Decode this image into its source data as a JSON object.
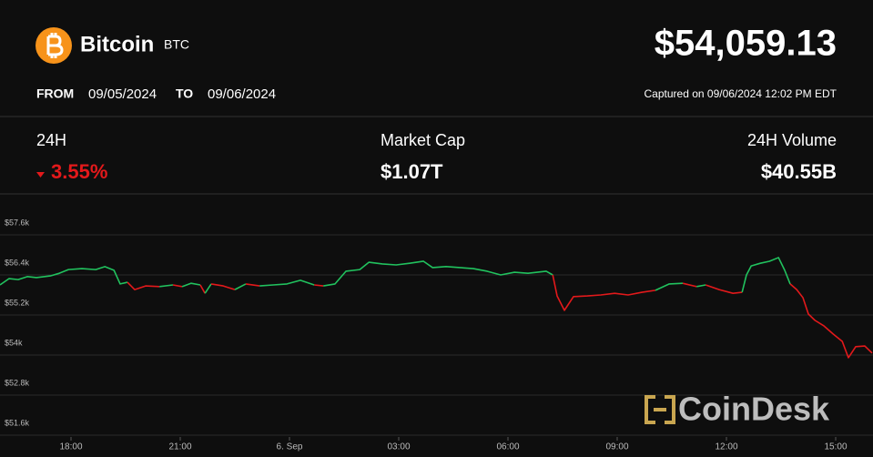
{
  "header": {
    "name": "Bitcoin",
    "symbol": "BTC",
    "price": "$54,059.13",
    "from_label": "FROM",
    "from_date": "09/05/2024",
    "to_label": "TO",
    "to_date": "09/06/2024",
    "captured": "Captured on 09/06/2024 12:02 PM EDT"
  },
  "stats": [
    {
      "label": "24H",
      "value": "3.55%"
    },
    {
      "label": "Market Cap",
      "value": "$1.07T"
    },
    {
      "label": "24H Volume",
      "value": "$40.55B"
    }
  ],
  "watermark": "CoinDesk",
  "chart_data": {
    "type": "line",
    "x": [
      16.05,
      16.3,
      16.55,
      16.8,
      17.05,
      17.43,
      17.68,
      17.93,
      18.3,
      18.68,
      18.93,
      19.18,
      19.35,
      19.55,
      19.75,
      20.05,
      20.43,
      20.8,
      21.05,
      21.3,
      21.55,
      21.68,
      21.85,
      22.18,
      22.5,
      22.8,
      23.18,
      23.55,
      23.93,
      24.3,
      24.68,
      24.93,
      25.25,
      25.55,
      25.93,
      26.18,
      26.55,
      26.93,
      27.3,
      27.68,
      27.93,
      28.3,
      28.68,
      29.05,
      29.43,
      29.8,
      30.18,
      30.55,
      31.05,
      31.23,
      31.35,
      31.55,
      31.8,
      32.18,
      32.55,
      32.93,
      33.3,
      33.68,
      34.05,
      34.43,
      34.8,
      35.18,
      35.43,
      35.8,
      36.18,
      36.43,
      36.55,
      36.68,
      36.93,
      37.18,
      37.43,
      37.6,
      37.75,
      37.93,
      38.1,
      38.25,
      38.43,
      38.68,
      38.93,
      39.18,
      39.35,
      39.55,
      39.8,
      40.0
    ],
    "values": [
      56.1,
      56.29,
      56.26,
      56.35,
      56.32,
      56.37,
      56.45,
      56.56,
      56.59,
      56.56,
      56.65,
      56.54,
      56.13,
      56.18,
      55.96,
      56.07,
      56.05,
      56.1,
      56.05,
      56.15,
      56.1,
      55.85,
      56.13,
      56.07,
      55.96,
      56.13,
      56.07,
      56.1,
      56.13,
      56.24,
      56.1,
      56.07,
      56.13,
      56.51,
      56.56,
      56.78,
      56.73,
      56.7,
      56.75,
      56.81,
      56.62,
      56.65,
      56.62,
      56.59,
      56.51,
      56.4,
      56.48,
      56.45,
      56.51,
      56.4,
      55.77,
      55.34,
      55.75,
      55.77,
      55.8,
      55.85,
      55.8,
      55.88,
      55.94,
      56.13,
      56.15,
      56.05,
      56.1,
      55.96,
      55.85,
      55.88,
      56.4,
      56.67,
      56.75,
      56.81,
      56.92,
      56.54,
      56.13,
      55.96,
      55.72,
      55.23,
      55.04,
      54.87,
      54.63,
      54.41,
      53.92,
      54.25,
      54.27,
      54.06
    ],
    "colors": {
      "up": "#21c25e",
      "down": "#e3191b"
    },
    "xlim": [
      16.05,
      40.025
    ],
    "xticks": [
      {
        "value": 18,
        "label": "18:00"
      },
      {
        "value": 21,
        "label": "21:00"
      },
      {
        "value": 24,
        "label": "6. Sep"
      },
      {
        "value": 27,
        "label": "03:00"
      },
      {
        "value": 30,
        "label": "06:00"
      },
      {
        "value": 33,
        "label": "09:00"
      },
      {
        "value": 36,
        "label": "12:00"
      },
      {
        "value": 39,
        "label": "15:00"
      }
    ],
    "ylim": [
      51.6,
      58.8
    ],
    "yticks": [
      {
        "value": 51.6,
        "label": "$51.6k"
      },
      {
        "value": 52.8,
        "label": "$52.8k"
      },
      {
        "value": 54,
        "label": "$54k"
      },
      {
        "value": 55.2,
        "label": "$55.2k"
      },
      {
        "value": 56.4,
        "label": "$56.4k"
      },
      {
        "value": 57.6,
        "label": "$57.6k"
      }
    ],
    "grid": true
  }
}
